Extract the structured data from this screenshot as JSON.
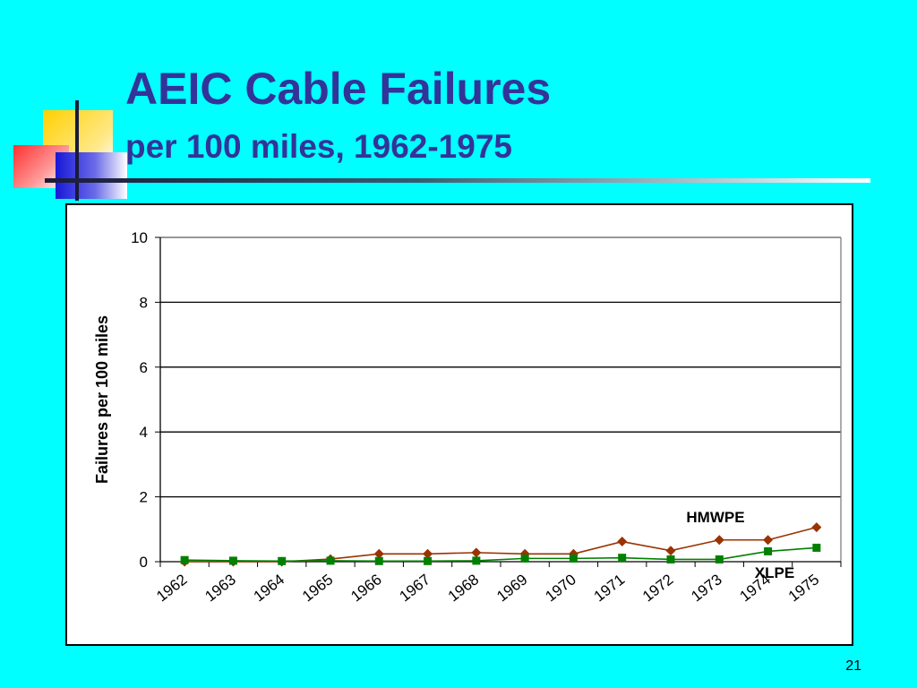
{
  "slide": {
    "title": "AEIC Cable Failures",
    "subtitle": "per 100 miles, 1962-1975",
    "page_number": "21"
  },
  "chart_data": {
    "type": "line",
    "categories": [
      "1962",
      "1963",
      "1964",
      "1965",
      "1966",
      "1967",
      "1968",
      "1969",
      "1970",
      "1971",
      "1972",
      "1973",
      "1974",
      "1975"
    ],
    "series": [
      {
        "name": "HMWPE",
        "color": "#993300",
        "marker": "diamond",
        "values": [
          0.0,
          0.0,
          0.0,
          0.08,
          0.24,
          0.24,
          0.28,
          0.24,
          0.24,
          0.62,
          0.34,
          0.67,
          0.67,
          1.06
        ]
      },
      {
        "name": "XLPE",
        "color": "#008000",
        "marker": "square",
        "values": [
          0.05,
          0.03,
          0.02,
          0.03,
          0.02,
          0.02,
          0.03,
          0.1,
          0.1,
          0.12,
          0.07,
          0.07,
          0.32,
          0.43
        ]
      }
    ],
    "xlabel": "",
    "ylabel": "Failures per 100 miles",
    "ylim": [
      0,
      10
    ],
    "yticks": [
      0,
      2,
      4,
      6,
      8,
      10
    ],
    "grid": true,
    "legend": "inline labels near series ends"
  }
}
